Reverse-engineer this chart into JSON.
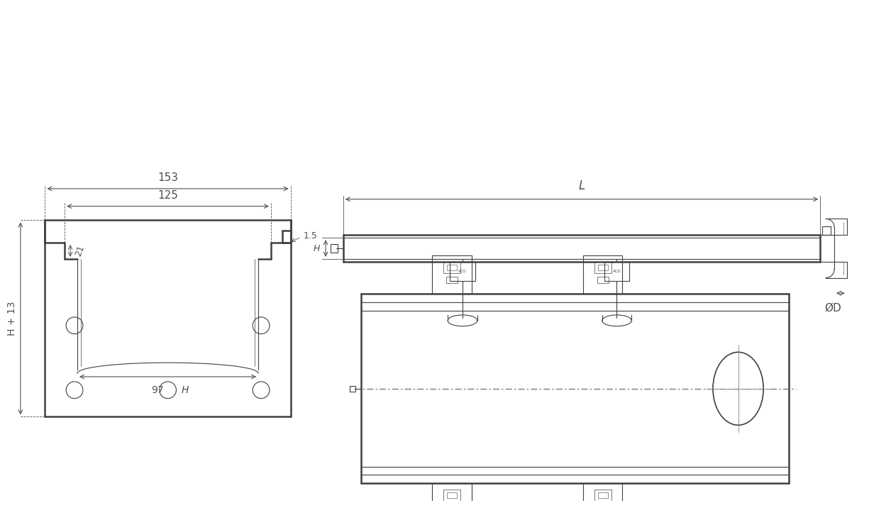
{
  "bg_color": "#ffffff",
  "line_color": "#404040",
  "dim_color": "#505050",
  "thin_lw": 0.8,
  "med_lw": 1.2,
  "thick_lw": 1.8,
  "annotations": {
    "dim_153": "153",
    "dim_125": "125",
    "dim_21": "21",
    "dim_97": "97",
    "dim_H_13": "H + 13",
    "dim_1_5": "1.5",
    "dim_H": "H",
    "dim_L": "L",
    "dim_OD": "ØD"
  }
}
